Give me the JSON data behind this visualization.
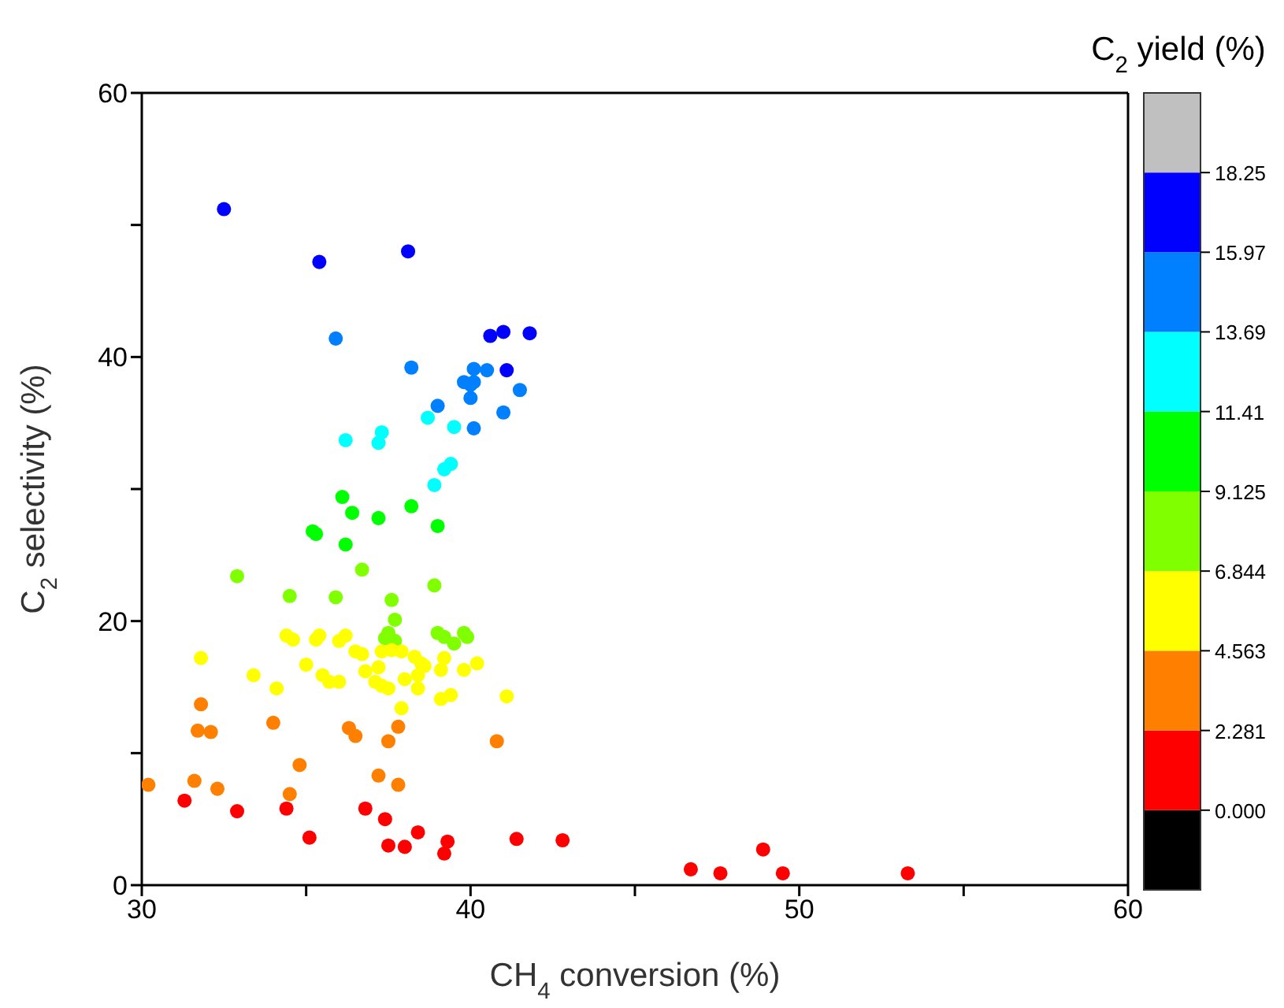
{
  "chart_data": {
    "type": "scatter",
    "xlabel": "CH$_{4}$ conversion (%)",
    "ylabel": "C$_{2}$ selectivity (%)",
    "clabel": "C$_{2}$ yield (%)",
    "xlim": [
      30,
      60
    ],
    "xticks": [
      30,
      {
        "value": 35,
        "label": null
      },
      40,
      {
        "value": 45,
        "label": null
      },
      50,
      {
        "value": 55,
        "label": null
      },
      60
    ],
    "ylim": [
      0,
      60
    ],
    "yticks": [
      0,
      {
        "value": 10,
        "label": null
      },
      20,
      {
        "value": 30,
        "label": null
      },
      40,
      {
        "value": 50,
        "label": null
      },
      60
    ],
    "clim": [
      -2.281,
      20.53
    ],
    "cticks": [
      {
        "value": 0,
        "label": "0.000"
      },
      2.281,
      4.563,
      6.844,
      9.125,
      11.41,
      13.69,
      15.97,
      18.25
    ],
    "marker": "circle",
    "series": [
      {
        "type": "scatter",
        "x": [
          32.5,
          35.4,
          38.1,
          40.6,
          41.0,
          41.8,
          41.1,
          35.9,
          38.2,
          40.1,
          40.5,
          39.8,
          40.1,
          40.0,
          40.0,
          41.5,
          39.0,
          41.0,
          40.1,
          38.7,
          39.5,
          36.2,
          37.3,
          37.2,
          39.4,
          39.2,
          38.9,
          36.1,
          36.4,
          37.2,
          38.2,
          39.0,
          35.2,
          35.3,
          36.2,
          32.9,
          34.5,
          35.9,
          36.7,
          37.6,
          38.9,
          37.7,
          37.5,
          37.4,
          37.7,
          39.0,
          39.2,
          39.5,
          39.8,
          39.9,
          31.8,
          34.4,
          34.6,
          35.3,
          35.4,
          36.0,
          36.2,
          36.5,
          36.7,
          37.3,
          37.6,
          37.9,
          38.3,
          38.5,
          38.6,
          39.2,
          40.2,
          35.0,
          37.2,
          36.8,
          39.1,
          39.8,
          33.4,
          35.5,
          35.7,
          36.0,
          38.0,
          38.4,
          37.1,
          37.3,
          37.5,
          38.4,
          34.1,
          39.1,
          39.4,
          37.9,
          41.1,
          31.8,
          31.7,
          32.1,
          34.0,
          36.3,
          36.5,
          37.8,
          37.5,
          40.8,
          34.8,
          37.2,
          37.8,
          30.2,
          31.6,
          32.3,
          34.5,
          31.3,
          32.9,
          34.4,
          36.8,
          37.4,
          35.1,
          37.5,
          38.0,
          38.4,
          39.3,
          39.2,
          41.4,
          42.8,
          46.7,
          47.6,
          48.9,
          49.5,
          53.3
        ],
        "values": [
          51.2,
          47.2,
          48.0,
          41.6,
          41.9,
          41.8,
          39.0,
          41.4,
          39.2,
          39.1,
          39.0,
          38.1,
          38.1,
          37.9,
          36.9,
          37.5,
          36.3,
          35.8,
          34.6,
          35.4,
          34.7,
          33.7,
          34.3,
          33.5,
          31.9,
          31.5,
          30.3,
          29.4,
          28.2,
          27.8,
          28.7,
          27.2,
          26.8,
          26.6,
          25.8,
          23.4,
          21.9,
          21.8,
          23.9,
          21.6,
          22.7,
          20.1,
          19.1,
          18.7,
          18.5,
          19.1,
          18.8,
          18.3,
          19.1,
          18.8,
          17.2,
          18.9,
          18.6,
          18.6,
          18.9,
          18.5,
          18.9,
          17.7,
          17.5,
          17.7,
          17.8,
          17.7,
          17.3,
          16.8,
          16.6,
          17.2,
          16.8,
          16.7,
          16.5,
          16.2,
          16.3,
          16.3,
          15.9,
          15.9,
          15.4,
          15.4,
          15.6,
          15.9,
          15.4,
          15.1,
          14.9,
          14.9,
          14.9,
          14.1,
          14.4,
          13.4,
          14.3,
          13.7,
          11.7,
          11.6,
          12.3,
          11.9,
          11.3,
          12.0,
          10.9,
          10.9,
          9.1,
          8.3,
          7.6,
          7.6,
          7.9,
          7.3,
          6.9,
          6.4,
          5.6,
          5.8,
          5.8,
          5.0,
          3.6,
          3.0,
          2.9,
          4.0,
          3.3,
          2.4,
          3.5,
          3.4,
          1.2,
          0.9,
          2.7,
          0.9,
          0.9
        ],
        "cvalues": [
          17.11,
          17.11,
          17.11,
          17.11,
          17.11,
          17.11,
          17.11,
          14.83,
          14.83,
          14.83,
          14.83,
          14.83,
          14.83,
          14.83,
          14.83,
          14.83,
          14.83,
          14.83,
          14.83,
          12.55,
          12.55,
          12.55,
          12.55,
          12.55,
          12.55,
          12.55,
          12.55,
          10.27,
          10.27,
          10.27,
          10.27,
          10.27,
          10.27,
          10.27,
          10.27,
          7.98,
          7.98,
          7.98,
          7.98,
          7.98,
          7.98,
          7.98,
          7.98,
          7.98,
          7.98,
          7.98,
          7.98,
          7.98,
          7.98,
          7.98,
          5.7,
          5.7,
          5.7,
          5.7,
          5.7,
          5.7,
          5.7,
          5.7,
          5.7,
          5.7,
          5.7,
          5.7,
          5.7,
          5.7,
          5.7,
          5.7,
          5.7,
          5.7,
          5.7,
          5.7,
          5.7,
          5.7,
          5.7,
          5.7,
          5.7,
          5.7,
          5.7,
          5.7,
          5.7,
          5.7,
          5.7,
          5.7,
          5.7,
          5.7,
          5.7,
          5.7,
          5.7,
          3.42,
          3.42,
          3.42,
          3.42,
          3.42,
          3.42,
          3.42,
          3.42,
          3.42,
          3.42,
          3.42,
          3.42,
          3.42,
          3.42,
          3.42,
          3.42,
          1.14,
          1.14,
          1.14,
          1.14,
          1.14,
          1.14,
          1.14,
          1.14,
          1.14,
          1.14,
          1.14,
          1.14,
          1.14,
          1.14,
          1.14,
          1.14,
          1.14,
          1.14
        ]
      }
    ]
  }
}
